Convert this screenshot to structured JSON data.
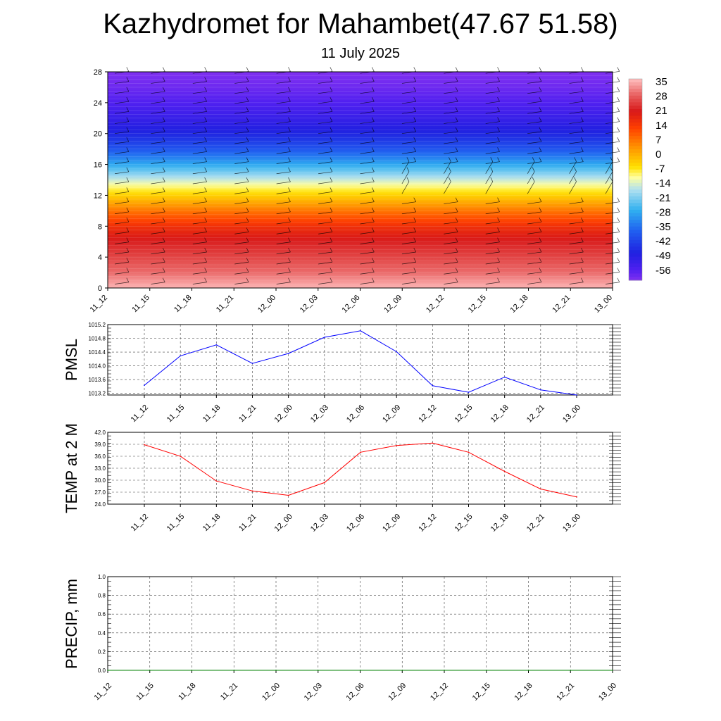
{
  "header": {
    "title": "Kazhydromet for Mahambet(47.67 51.58)",
    "subtitle": "11 July 2025"
  },
  "chart_data": [
    {
      "type": "heatmap",
      "name": "upper-air-temperature-cross-section",
      "x_categories": [
        "11_12",
        "11_15",
        "11_18",
        "11_21",
        "12_00",
        "12_03",
        "12_06",
        "12_09",
        "12_12",
        "12_15",
        "12_18",
        "12_21",
        "13_00"
      ],
      "y_ticks": [
        "0",
        "4",
        "8",
        "12",
        "16",
        "20",
        "24",
        "28"
      ],
      "ylim": [
        0,
        28
      ],
      "colorbar_labels": [
        "35",
        "28",
        "21",
        "14",
        "7",
        "0",
        "-7",
        "-14",
        "-21",
        "-28",
        "-35",
        "-42",
        "-49",
        "-56"
      ],
      "colorbar_range": [
        -60,
        38
      ],
      "color_stops": [
        {
          "value": 38,
          "color": "#ffc0c0"
        },
        {
          "value": 30,
          "color": "#e86060"
        },
        {
          "value": 22,
          "color": "#d81818"
        },
        {
          "value": 14,
          "color": "#ff4000"
        },
        {
          "value": 5,
          "color": "#ff9000"
        },
        {
          "value": -5,
          "color": "#ffe000"
        },
        {
          "value": -10,
          "color": "#ffffa0"
        },
        {
          "value": -16,
          "color": "#b0e0f0"
        },
        {
          "value": -26,
          "color": "#30b0f0"
        },
        {
          "value": -36,
          "color": "#2060f0"
        },
        {
          "value": -47,
          "color": "#2020e0"
        },
        {
          "value": -55,
          "color": "#5020f0"
        },
        {
          "value": -60,
          "color": "#8030f0"
        }
      ],
      "profile": [
        {
          "level": 0,
          "value": 37
        },
        {
          "level": 2,
          "value": 31
        },
        {
          "level": 4,
          "value": 27
        },
        {
          "level": 6,
          "value": 23
        },
        {
          "level": 8,
          "value": 17
        },
        {
          "level": 10,
          "value": 8
        },
        {
          "level": 12,
          "value": -3
        },
        {
          "level": 13.5,
          "value": -11
        },
        {
          "level": 16,
          "value": -27
        },
        {
          "level": 18,
          "value": -38
        },
        {
          "level": 20,
          "value": -46
        },
        {
          "level": 22,
          "value": -51
        },
        {
          "level": 24,
          "value": -55
        },
        {
          "level": 26,
          "value": -58
        },
        {
          "level": 28,
          "value": -60
        }
      ]
    },
    {
      "type": "line",
      "name": "pmsl",
      "ylabel": "PMSL",
      "x_categories": [
        "11_12",
        "11_15",
        "11_18",
        "11_21",
        "12_00",
        "12_03",
        "12_06",
        "12_09",
        "12_12",
        "12_15",
        "12_18",
        "12_21",
        "13_00"
      ],
      "values": [
        1013.43,
        1014.29,
        1014.61,
        1014.07,
        1014.36,
        1014.83,
        1015.02,
        1014.41,
        1013.42,
        1013.23,
        1013.67,
        1013.3,
        1013.15
      ],
      "ylim": [
        1013.15,
        1015.2
      ],
      "y_ticks": [
        "1013.2",
        "1013.6",
        "1014.0",
        "1014.4",
        "1014.8",
        "1015.2"
      ],
      "color": "#0000ff"
    },
    {
      "type": "line",
      "name": "temp-2m",
      "ylabel": "TEMP at 2 M",
      "x_categories": [
        "11_12",
        "11_15",
        "11_18",
        "11_21",
        "12_00",
        "12_03",
        "12_06",
        "12_09",
        "12_12",
        "12_15",
        "12_18",
        "12_21",
        "13_00"
      ],
      "values": [
        38.9,
        36.0,
        29.8,
        27.3,
        26.2,
        29.4,
        37.0,
        38.7,
        39.3,
        37.0,
        32.2,
        27.8,
        25.8
      ],
      "ylim": [
        24,
        42
      ],
      "y_ticks": [
        "24.0",
        "27.0",
        "30.0",
        "33.0",
        "36.0",
        "39.0",
        "42.0"
      ],
      "color": "#ff0000"
    },
    {
      "type": "line",
      "name": "precip",
      "ylabel": "PRECIP, mm",
      "x_categories": [
        "11_12",
        "11_15",
        "11_18",
        "11_21",
        "12_00",
        "12_03",
        "12_06",
        "12_09",
        "12_12",
        "12_15",
        "12_18",
        "12_21",
        "13_00"
      ],
      "values": [
        0,
        0,
        0,
        0,
        0,
        0,
        0,
        0,
        0,
        0,
        0,
        0,
        0
      ],
      "ylim": [
        0,
        1
      ],
      "y_ticks": [
        "0.0",
        "0.2",
        "0.4",
        "0.6",
        "0.8",
        "1.0"
      ],
      "color": "#008000"
    }
  ]
}
